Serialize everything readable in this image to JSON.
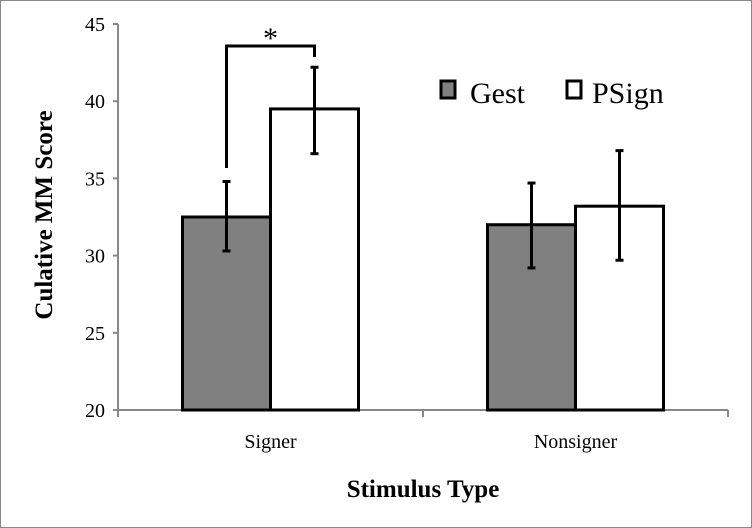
{
  "chart_data": {
    "type": "bar",
    "title": "",
    "xlabel": "Stimulus Type",
    "ylabel": "Culative MM Score",
    "ylim": [
      20,
      45
    ],
    "yticks": [
      20,
      25,
      30,
      35,
      40,
      45
    ],
    "categories": [
      "Signer",
      "Nonsigner"
    ],
    "series": [
      {
        "name": "Gest",
        "color": "#808080",
        "values": [
          32.5,
          32.0
        ],
        "error_low": [
          30.3,
          29.2
        ],
        "error_high": [
          34.8,
          34.7
        ]
      },
      {
        "name": "PSign",
        "color": "#ffffff",
        "values": [
          39.5,
          33.2
        ],
        "error_low": [
          36.6,
          29.7
        ],
        "error_high": [
          42.2,
          36.8
        ]
      }
    ],
    "legend": "top-right",
    "grid": false,
    "annotations": [
      {
        "text": "*",
        "category": "Signer",
        "meaning": "significance bracket between Gest and PSign"
      }
    ]
  }
}
